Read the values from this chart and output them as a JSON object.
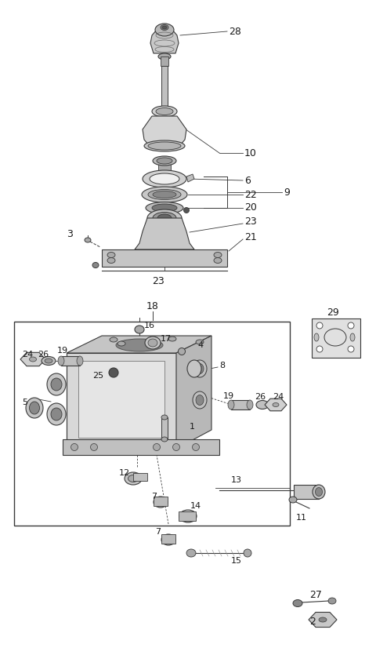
{
  "bg_color": "#ffffff",
  "lc": "#3a3a3a",
  "fig_w": 4.8,
  "fig_h": 8.49,
  "dpi": 100
}
